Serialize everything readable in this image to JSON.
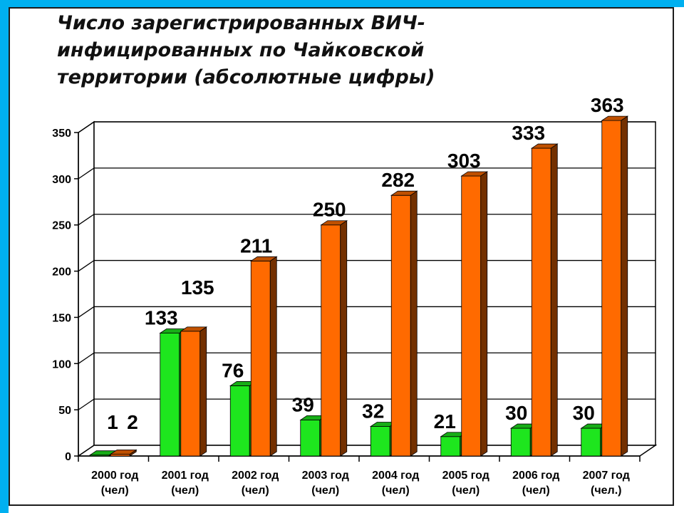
{
  "title": "Число зарегистрированных ВИЧ-инфицированных по Чайковской территории (абсолютные цифры)",
  "title_lines": [
    "Число зарегистрированных ВИЧ-",
    "инфицированных по Чайковской",
    "территории (абсолютные цифры)"
  ],
  "colors": {
    "accent": "#00b0f0",
    "green_series": "#1ee61e",
    "orange_series": "#ff6a00"
  },
  "chart_data": {
    "type": "bar",
    "categories": [
      [
        "2000 год",
        "(чел)"
      ],
      [
        "2001 год",
        "(чел)"
      ],
      [
        "2002 год",
        "(чел)"
      ],
      [
        "2003 год",
        "(чел)"
      ],
      [
        "2004 год",
        "(чел)"
      ],
      [
        "2005 год",
        "(чел)"
      ],
      [
        "2006 год",
        "(чел)"
      ],
      [
        "2007 год",
        "(чел.)"
      ]
    ],
    "series": [
      {
        "values": [
          1,
          133,
          76,
          39,
          32,
          21,
          30,
          30
        ],
        "color": "#1ee61e"
      },
      {
        "values": [
          2,
          135,
          211,
          250,
          282,
          303,
          333,
          363
        ],
        "color": "#ff6a00"
      }
    ],
    "ylim": [
      0,
      350
    ],
    "yticks": [
      0,
      50,
      100,
      150,
      200,
      250,
      300,
      350
    ],
    "grid": true,
    "legend": "none",
    "style": "3d-clustered"
  }
}
